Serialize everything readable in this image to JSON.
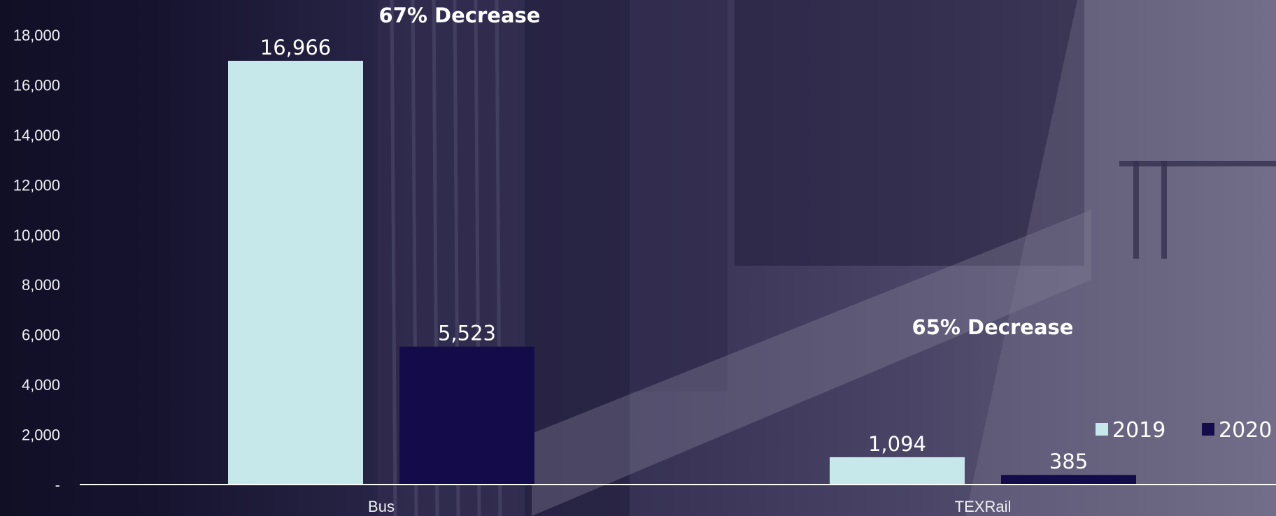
{
  "chart_data": {
    "type": "bar",
    "categories": [
      "Bus",
      "TEXRail"
    ],
    "series": [
      {
        "name": "2019",
        "color": "#c6e8ea",
        "values": [
          16966,
          1094
        ],
        "labels": [
          "16,966",
          "1,094"
        ]
      },
      {
        "name": "2020",
        "color": "#140c4a",
        "values": [
          5523,
          385
        ],
        "labels": [
          "5,523",
          "385"
        ]
      }
    ],
    "ylim": [
      0,
      18000
    ],
    "yticks": [
      {
        "value": 0,
        "label": "-"
      },
      {
        "value": 2000,
        "label": "2,000"
      },
      {
        "value": 4000,
        "label": "4,000"
      },
      {
        "value": 6000,
        "label": "6,000"
      },
      {
        "value": 8000,
        "label": "8,000"
      },
      {
        "value": 10000,
        "label": "10,000"
      },
      {
        "value": 12000,
        "label": "12,000"
      },
      {
        "value": 14000,
        "label": "14,000"
      },
      {
        "value": 16000,
        "label": "16,000"
      },
      {
        "value": 18000,
        "label": "18,000"
      }
    ],
    "annotations": [
      "67% Decrease",
      "65% Decrease"
    ],
    "legend": {
      "placement": "bottom-right",
      "entries": [
        "2019",
        "2020"
      ]
    },
    "grid": false,
    "axis_color": "#ffffff"
  }
}
